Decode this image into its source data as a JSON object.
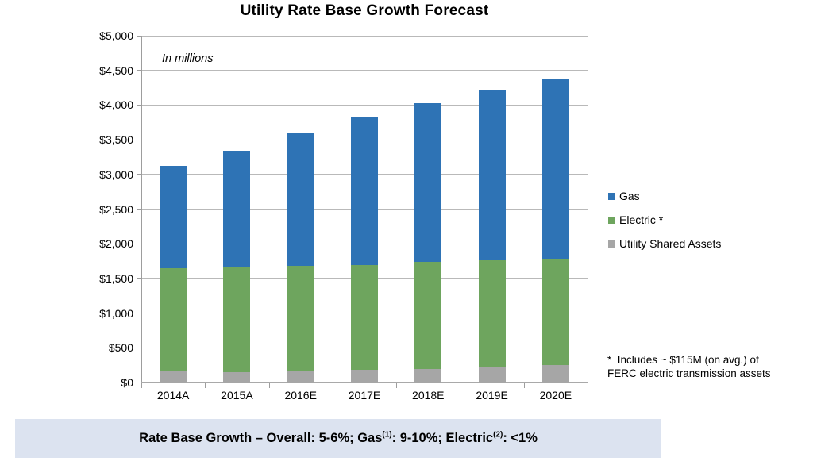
{
  "title": "Utility Rate Base Growth Forecast",
  "units_note": "In millions",
  "legend": {
    "items": [
      {
        "label": "Gas",
        "color": "#2E73B5",
        "icon": "blue-square-swatch"
      },
      {
        "label": "Electric *",
        "color": "#6EA55E",
        "icon": "green-square-swatch"
      },
      {
        "label": "Utility Shared Assets",
        "color": "#A6A6A6",
        "icon": "gray-square-swatch"
      }
    ]
  },
  "footnote": {
    "line1": "*  Includes ~ $115M (on avg.) of",
    "line2": "FERC electric transmission assets"
  },
  "banner": {
    "part1": "Rate Base Growth – Overall: 5-6%; Gas",
    "sup1": "(1)",
    "part2": ": 9-10%; Electric",
    "sup2": "(2)",
    "part3": ": <1%"
  },
  "colors": {
    "gas": "#2E73B5",
    "electric": "#6EA55E",
    "shared": "#A6A6A6",
    "gridline": "#B9B9B9",
    "axis": "#9D9D9D",
    "banner_bg": "#DCE3F0"
  },
  "chart_data": {
    "type": "bar",
    "stacked": true,
    "title": "Utility Rate Base Growth Forecast",
    "subtitle": "In millions",
    "categories": [
      "2014A",
      "2015A",
      "2016E",
      "2017E",
      "2018E",
      "2019E",
      "2020E"
    ],
    "series": [
      {
        "name": "Utility Shared Assets",
        "color": "#A6A6A6",
        "values": [
          155,
          150,
          170,
          180,
          195,
          230,
          255
        ]
      },
      {
        "name": "Electric *",
        "color": "#6EA55E",
        "values": [
          1490,
          1515,
          1510,
          1510,
          1540,
          1535,
          1525
        ]
      },
      {
        "name": "Gas",
        "color": "#2E73B5",
        "values": [
          1480,
          1675,
          1915,
          2145,
          2295,
          2455,
          2600
        ]
      }
    ],
    "totals": [
      3125,
      3340,
      3595,
      3835,
      4030,
      4220,
      4380
    ],
    "xlabel": "",
    "ylabel": "",
    "ylim": [
      0,
      5000
    ],
    "y_tick_step": 500,
    "y_tick_labels": [
      "$0",
      "$500",
      "$1,000",
      "$1,500",
      "$2,000",
      "$2,500",
      "$3,000",
      "$3,500",
      "$4,000",
      "$4,500",
      "$5,000"
    ],
    "grid": true,
    "legend_position": "right"
  }
}
